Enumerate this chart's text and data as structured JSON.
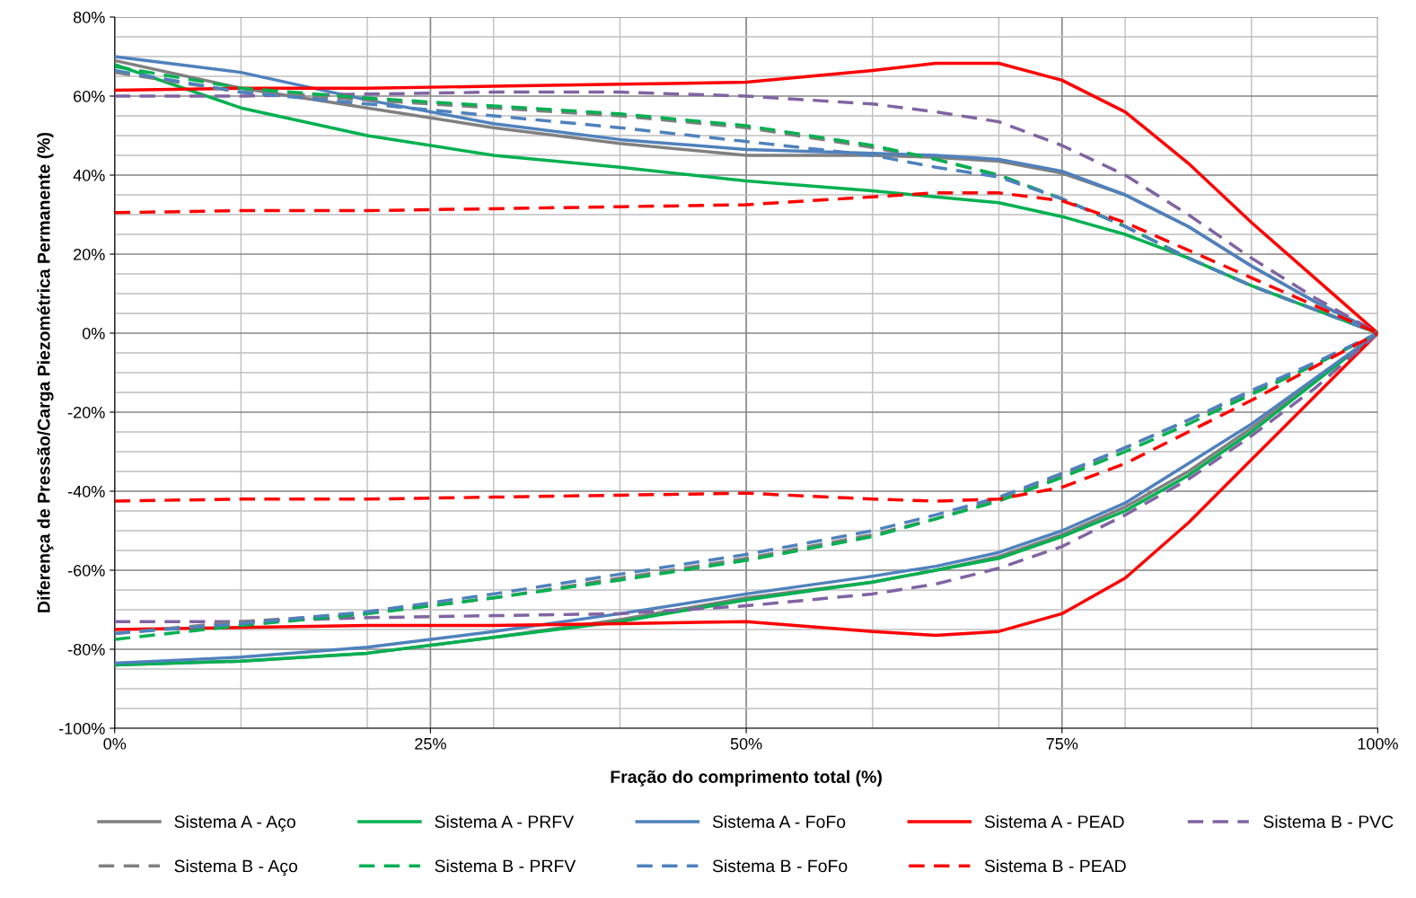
{
  "chart_data": {
    "type": "line",
    "xlabel": "Fração do comprimento total (%)",
    "ylabel": "Diferença de Pressão/Carga Piezométrica Permanente (%)",
    "x": [
      0,
      10,
      20,
      30,
      40,
      50,
      60,
      65,
      70,
      75,
      80,
      85,
      90,
      95,
      100
    ],
    "xlim": [
      0,
      100
    ],
    "ylim": [
      -100,
      80
    ],
    "xticks": [
      {
        "value": 0,
        "label": "0%"
      },
      {
        "value": 25,
        "label": "25%"
      },
      {
        "value": 50,
        "label": "50%"
      },
      {
        "value": 75,
        "label": "75%"
      },
      {
        "value": 100,
        "label": "100%"
      }
    ],
    "yticks": [
      {
        "value": -100,
        "label": "-100%"
      },
      {
        "value": -80,
        "label": "-80%"
      },
      {
        "value": -60,
        "label": "-60%"
      },
      {
        "value": -40,
        "label": "-40%"
      },
      {
        "value": -20,
        "label": "-20%"
      },
      {
        "value": 0,
        "label": "0%"
      },
      {
        "value": 20,
        "label": "20%"
      },
      {
        "value": 40,
        "label": "40%"
      },
      {
        "value": 60,
        "label": "60%"
      },
      {
        "value": 80,
        "label": "80%"
      }
    ],
    "grid": true,
    "legend": "bottom",
    "marker": "none",
    "series": [
      {
        "name": "Sistema A - Aço",
        "color": "#808080",
        "line_style": "solid",
        "values": [
          69,
          62,
          57,
          52,
          48,
          45,
          45,
          44.5,
          43.5,
          40.5,
          35,
          27,
          17,
          8,
          0
        ]
      },
      {
        "name": "Sistema A - PRFV",
        "color": "#00b050",
        "line_style": "solid",
        "values": [
          68,
          57,
          50,
          45,
          42,
          38.5,
          36,
          34.5,
          33,
          29.5,
          25,
          19,
          12,
          6,
          0
        ]
      },
      {
        "name": "Sistema A - FoFo",
        "color": "#4f81bd",
        "line_style": "solid",
        "values": [
          70,
          66,
          59,
          53,
          49,
          46.5,
          45.5,
          45,
          44,
          41,
          35,
          27,
          17,
          8,
          0
        ]
      },
      {
        "name": "Sistema A - PEAD",
        "color": "#ff0000",
        "line_style": "solid",
        "values": [
          61.5,
          62,
          62,
          62.5,
          63,
          63.5,
          66.5,
          68.3,
          68.3,
          64,
          56,
          43,
          28,
          14,
          0
        ]
      },
      {
        "name": "Sistema B - PVC",
        "color": "#8064a2",
        "line_style": "dashed",
        "values": [
          60,
          60,
          60.5,
          61,
          61,
          60,
          58,
          56,
          53.5,
          47.5,
          40,
          30,
          19,
          9,
          0
        ]
      },
      {
        "name": "Sistema B - Aço",
        "color": "#808080",
        "line_style": "dashed",
        "values": [
          66,
          61,
          59,
          57,
          55,
          52,
          47,
          44,
          40,
          34,
          27,
          19,
          12,
          6,
          0
        ]
      },
      {
        "name": "Sistema B - PRFV",
        "color": "#00b050",
        "line_style": "dashed",
        "values": [
          67.5,
          62,
          59.5,
          57.5,
          55.5,
          52.5,
          47.5,
          44,
          40,
          34,
          27,
          19,
          12,
          6,
          0
        ]
      },
      {
        "name": "Sistema B - FoFo",
        "color": "#4f81bd",
        "line_style": "dashed",
        "values": [
          66.5,
          61,
          58,
          55,
          52,
          48.5,
          45,
          42,
          39.5,
          34,
          27,
          19,
          12,
          6,
          0
        ]
      },
      {
        "name": "Sistema B - PEAD",
        "color": "#ff0000",
        "line_style": "dashed",
        "values": [
          30.5,
          31,
          31,
          31.5,
          32,
          32.5,
          34.5,
          35.5,
          35.5,
          33.5,
          28,
          21,
          14,
          7,
          0
        ]
      },
      {
        "color": "#808080",
        "line_style": "solid",
        "values": [
          -84,
          -83,
          -81,
          -77,
          -72.5,
          -67,
          -63,
          -60,
          -56.5,
          -51,
          -44,
          -35,
          -24,
          -12,
          0
        ]
      },
      {
        "color": "#00b050",
        "line_style": "solid",
        "values": [
          -84,
          -83,
          -81,
          -77,
          -73,
          -67.5,
          -63,
          -60,
          -57,
          -51.5,
          -45,
          -36,
          -25,
          -12.5,
          0
        ]
      },
      {
        "color": "#4f81bd",
        "line_style": "solid",
        "values": [
          -83.5,
          -82,
          -79.5,
          -75.5,
          -71,
          -66,
          -61.5,
          -59,
          -55.5,
          -50,
          -43,
          -33,
          -23,
          -11.5,
          0
        ]
      },
      {
        "color": "#ff0000",
        "line_style": "solid",
        "values": [
          -75,
          -74.5,
          -74,
          -74,
          -73.5,
          -73,
          -75.5,
          -76.5,
          -75.5,
          -71,
          -62,
          -48,
          -32,
          -16,
          0
        ]
      },
      {
        "color": "#8064a2",
        "line_style": "dashed",
        "values": [
          -73,
          -73,
          -72,
          -71.5,
          -71,
          -69,
          -66,
          -63.5,
          -59.5,
          -54,
          -46,
          -37,
          -26,
          -14,
          0
        ]
      },
      {
        "color": "#808080",
        "line_style": "dashed",
        "values": [
          -76,
          -73,
          -71,
          -67,
          -62,
          -57,
          -51,
          -47,
          -42,
          -36,
          -29,
          -22,
          -15,
          -8,
          0
        ]
      },
      {
        "color": "#00b050",
        "line_style": "dashed",
        "values": [
          -77.5,
          -74,
          -71,
          -67,
          -62.5,
          -57.5,
          -51.5,
          -47,
          -42.5,
          -36.5,
          -30,
          -23,
          -15.5,
          -8,
          0
        ]
      },
      {
        "color": "#4f81bd",
        "line_style": "dashed",
        "values": [
          -76,
          -73.5,
          -70.5,
          -66,
          -61,
          -56,
          -50,
          -46,
          -41.5,
          -35.5,
          -29,
          -22,
          -14.5,
          -7.5,
          0
        ]
      },
      {
        "color": "#ff0000",
        "line_style": "dashed",
        "values": [
          -42.5,
          -42,
          -42,
          -41.5,
          -41,
          -40.5,
          -42,
          -42.5,
          -42,
          -39,
          -33,
          -25,
          -17,
          -8.5,
          0
        ]
      }
    ]
  }
}
